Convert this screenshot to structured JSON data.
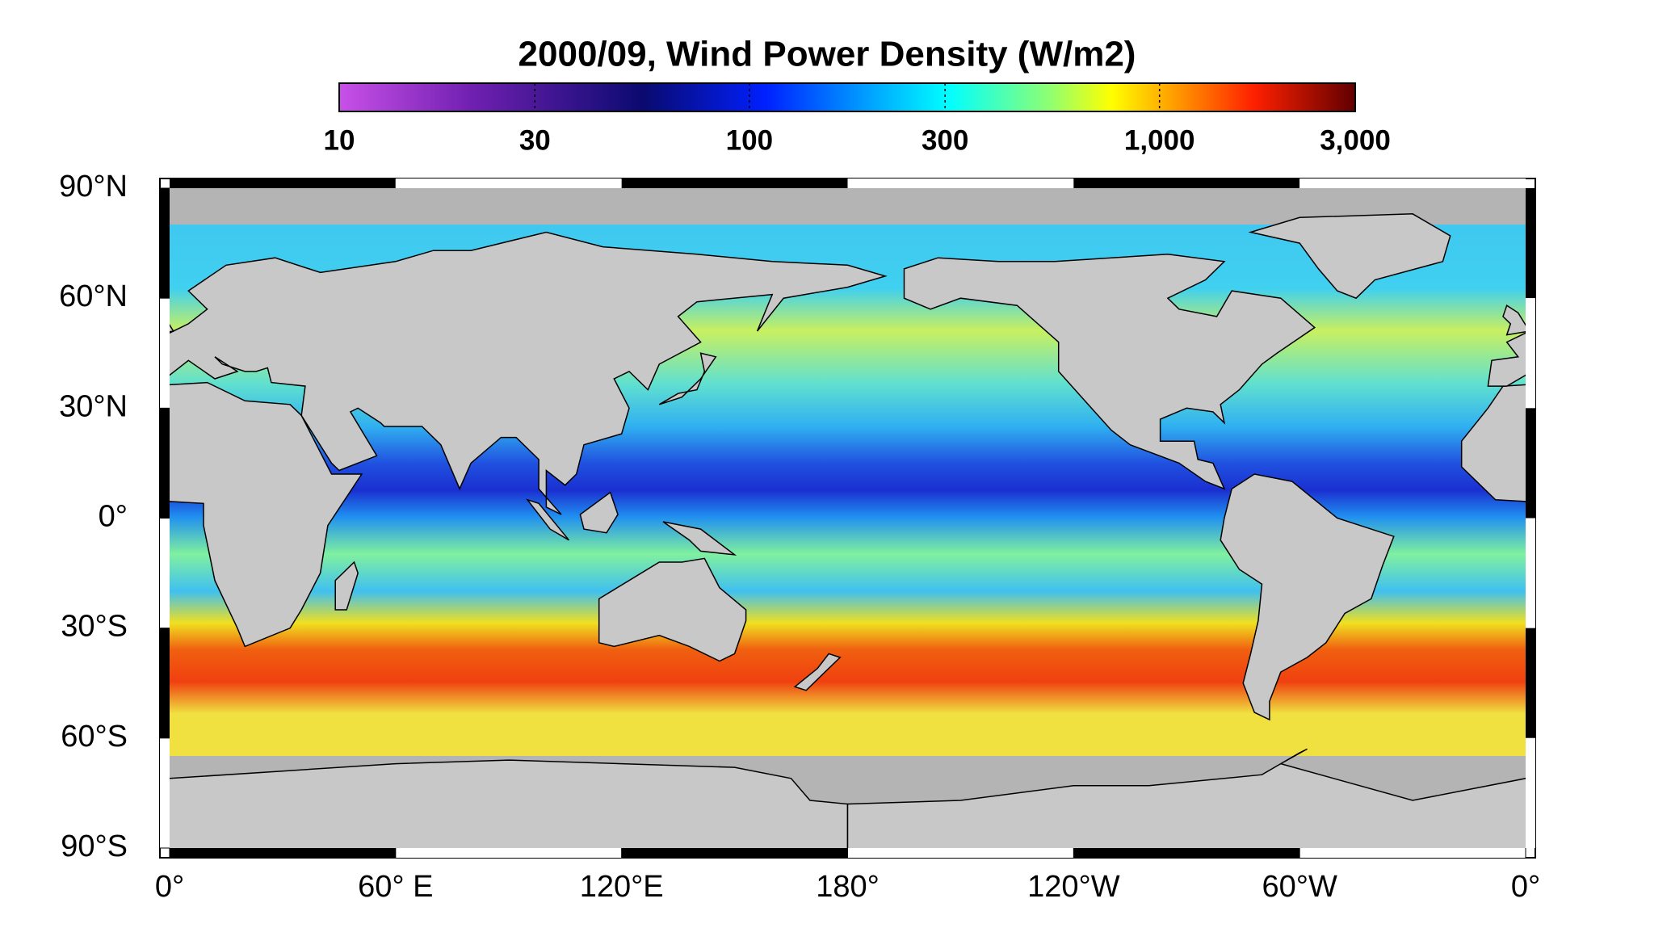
{
  "title": "2000/09, Wind Power Density (W/m2)",
  "colorbar": {
    "scale": "log",
    "lim": [
      10,
      3000
    ],
    "ticks": [
      10,
      30,
      100,
      300,
      {
        "value": 1000,
        "label": "1,000"
      },
      {
        "value": 3000,
        "label": "3,000"
      }
    ]
  },
  "map": {
    "lat_ticks": [
      {
        "value": 90,
        "label": "90°N"
      },
      {
        "value": 60,
        "label": "60°N"
      },
      {
        "value": 30,
        "label": "30°N"
      },
      {
        "value": 0,
        "label": "0°"
      },
      {
        "value": -30,
        "label": "30°S"
      },
      {
        "value": -60,
        "label": "60°S"
      },
      {
        "value": -90,
        "label": "90°S"
      }
    ],
    "lon_ticks": [
      {
        "value": 0,
        "label": "0°"
      },
      {
        "value": 60,
        "label": "60° E"
      },
      {
        "value": 120,
        "label": "120°E"
      },
      {
        "value": 180,
        "label": "180°"
      },
      {
        "value": 240,
        "label": "120°W"
      },
      {
        "value": 300,
        "label": "60°W"
      },
      {
        "value": 360,
        "label": "0°"
      }
    ]
  }
}
